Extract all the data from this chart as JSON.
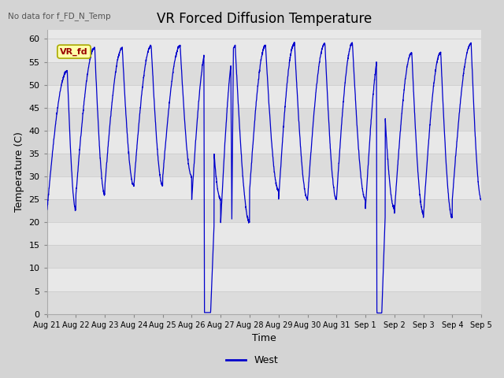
{
  "title": "VR Forced Diffusion Temperature",
  "no_data_label": "No data for f_FD_N_Temp",
  "xlabel": "Time",
  "ylabel": "Temperature (C)",
  "legend_label": "West",
  "vr_fd_label": "VR_fd",
  "fig_bg_color": "#d4d4d4",
  "plot_bg_color": "#e8e8e8",
  "line_color": "#0000cc",
  "ylim": [
    0,
    62
  ],
  "yticks": [
    0,
    5,
    10,
    15,
    20,
    25,
    30,
    35,
    40,
    45,
    50,
    55,
    60
  ],
  "title_fontsize": 12,
  "axis_fontsize": 8,
  "x_tick_labels": [
    "Aug 21",
    "Aug 22",
    "Aug 23",
    "Aug 24",
    "Aug 25",
    "Aug 26",
    "Aug 27",
    "Aug 28",
    "Aug 29",
    "Aug 30",
    "Aug 31",
    "Sep 1",
    "Sep 2",
    "Sep 3",
    "Sep 4",
    "Sep 5"
  ]
}
